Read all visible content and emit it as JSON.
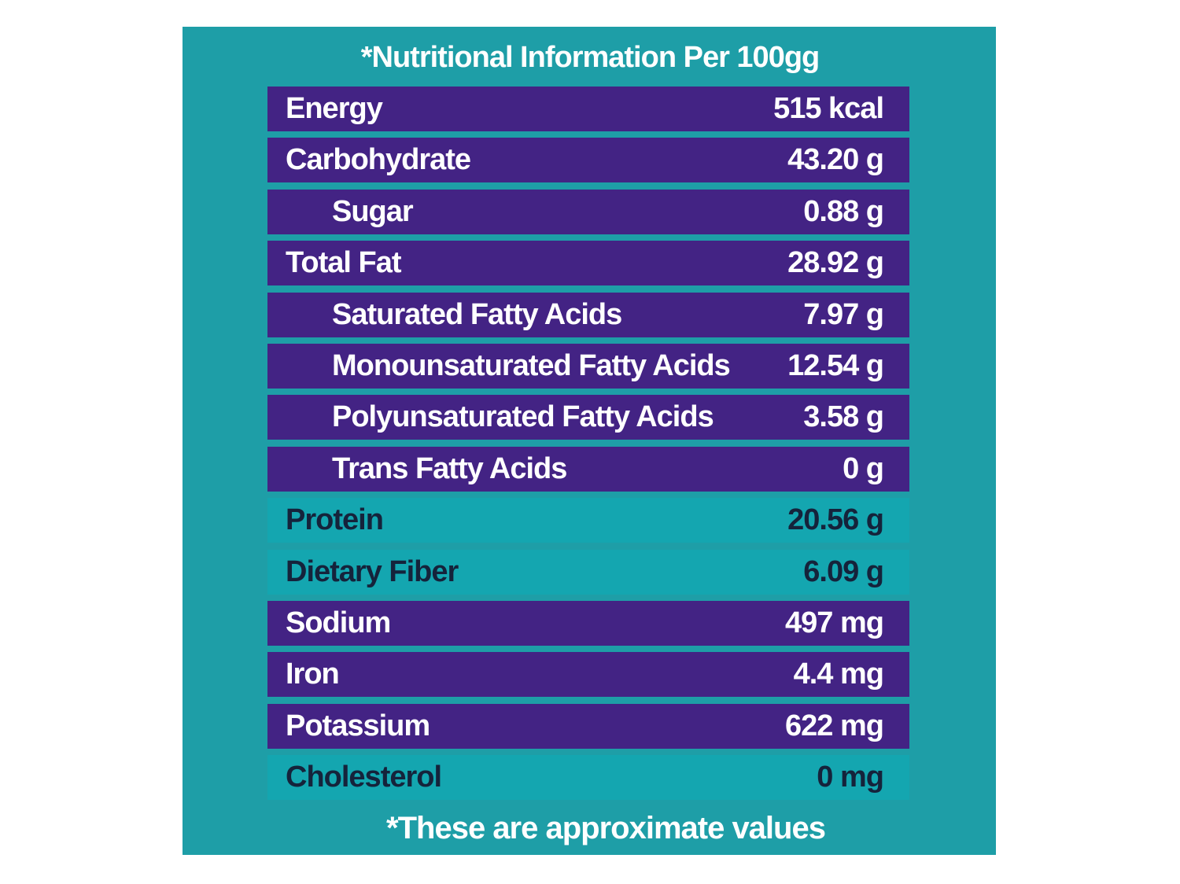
{
  "label": {
    "title": "*Nutritional Information Per 100gg",
    "footnote": "*These are approximate values",
    "colors": {
      "panel": "#1e9ea7",
      "purple_row": "#432384",
      "teal_row": "#14a6b0"
    },
    "rows": [
      {
        "name": "Energy",
        "value": "515 kcal",
        "style": "purple",
        "indent": false
      },
      {
        "name": "Carbohydrate",
        "value": "43.20 g",
        "style": "purple",
        "indent": false
      },
      {
        "name": "Sugar",
        "value": "0.88 g",
        "style": "purple",
        "indent": true
      },
      {
        "name": "Total Fat",
        "value": "28.92 g",
        "style": "purple",
        "indent": false
      },
      {
        "name": "Saturated Fatty Acids",
        "value": "7.97 g",
        "style": "purple",
        "indent": true
      },
      {
        "name": "Monounsaturated Fatty Acids",
        "value": "12.54 g",
        "style": "purple",
        "indent": true
      },
      {
        "name": "Polyunsaturated Fatty Acids",
        "value": "3.58 g",
        "style": "purple",
        "indent": true
      },
      {
        "name": "Trans Fatty Acids",
        "value": "0 g",
        "style": "purple",
        "indent": true
      },
      {
        "name": "Protein",
        "value": "20.56 g",
        "style": "teal",
        "indent": false
      },
      {
        "name": "Dietary Fiber",
        "value": "6.09 g",
        "style": "teal",
        "indent": false
      },
      {
        "name": "Sodium",
        "value": "497 mg",
        "style": "purple",
        "indent": false
      },
      {
        "name": "Iron",
        "value": "4.4 mg",
        "style": "purple",
        "indent": false
      },
      {
        "name": "Potassium",
        "value": "622 mg",
        "style": "purple",
        "indent": false
      },
      {
        "name": "Cholesterol",
        "value": "0 mg",
        "style": "teal",
        "indent": false
      }
    ]
  }
}
